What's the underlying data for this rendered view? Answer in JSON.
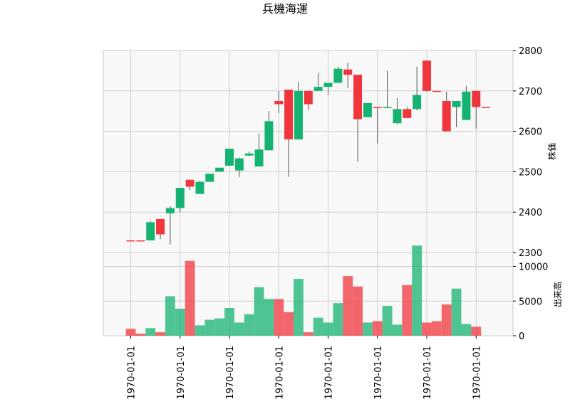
{
  "chart_data": {
    "type": "candlestick",
    "title": "兵機海運",
    "price_ylabel": "株価",
    "volume_ylabel": "出来高",
    "price_ylim": [
      2300,
      2800
    ],
    "volume_ylim": [
      0,
      12000
    ],
    "price_ticks": [
      2300,
      2400,
      2500,
      2600,
      2700,
      2800
    ],
    "volume_ticks": [
      0,
      5000,
      10000
    ],
    "x_tick_labels": [
      "1970-01-01",
      "1970-01-01",
      "1970-01-01",
      "1970-01-01",
      "1970-01-01",
      "1970-01-01",
      "1970-01-01",
      "1970-01-01"
    ],
    "grid": true,
    "up_color": "#15b371",
    "down_color": "#f0353d",
    "candles": [
      {
        "o": 2330,
        "h": 2330,
        "l": 2330,
        "c": 2330,
        "v": 1000
      },
      {
        "o": 2330,
        "h": 2330,
        "l": 2330,
        "c": 2330,
        "v": 300
      },
      {
        "o": 2330,
        "h": 2378,
        "l": 2330,
        "c": 2375,
        "v": 1100
      },
      {
        "o": 2383,
        "h": 2383,
        "l": 2333,
        "c": 2345,
        "v": 500
      },
      {
        "o": 2397,
        "h": 2415,
        "l": 2320,
        "c": 2410,
        "v": 5700
      },
      {
        "o": 2410,
        "h": 2460,
        "l": 2400,
        "c": 2460,
        "v": 3900
      },
      {
        "o": 2480,
        "h": 2480,
        "l": 2455,
        "c": 2463,
        "v": 10800
      },
      {
        "o": 2445,
        "h": 2478,
        "l": 2445,
        "c": 2475,
        "v": 1500
      },
      {
        "o": 2475,
        "h": 2495,
        "l": 2475,
        "c": 2495,
        "v": 2300
      },
      {
        "o": 2500,
        "h": 2510,
        "l": 2500,
        "c": 2510,
        "v": 2500
      },
      {
        "o": 2515,
        "h": 2557,
        "l": 2515,
        "c": 2557,
        "v": 4000
      },
      {
        "o": 2503,
        "h": 2535,
        "l": 2487,
        "c": 2533,
        "v": 1900
      },
      {
        "o": 2540,
        "h": 2550,
        "l": 2538,
        "c": 2545,
        "v": 3100
      },
      {
        "o": 2513,
        "h": 2595,
        "l": 2513,
        "c": 2555,
        "v": 7000
      },
      {
        "o": 2553,
        "h": 2650,
        "l": 2553,
        "c": 2625,
        "v": 5300
      },
      {
        "o": 2675,
        "h": 2700,
        "l": 2645,
        "c": 2667,
        "v": 5300
      },
      {
        "o": 2703,
        "h": 2703,
        "l": 2487,
        "c": 2580,
        "v": 3400
      },
      {
        "o": 2580,
        "h": 2722,
        "l": 2580,
        "c": 2700,
        "v": 8200
      },
      {
        "o": 2700,
        "h": 2700,
        "l": 2652,
        "c": 2667,
        "v": 500
      },
      {
        "o": 2700,
        "h": 2745,
        "l": 2700,
        "c": 2710,
        "v": 2600
      },
      {
        "o": 2710,
        "h": 2720,
        "l": 2690,
        "c": 2720,
        "v": 1900
      },
      {
        "o": 2720,
        "h": 2760,
        "l": 2720,
        "c": 2755,
        "v": 4700
      },
      {
        "o": 2753,
        "h": 2770,
        "l": 2707,
        "c": 2740,
        "v": 8600
      },
      {
        "o": 2740,
        "h": 2740,
        "l": 2525,
        "c": 2630,
        "v": 7100
      },
      {
        "o": 2635,
        "h": 2670,
        "l": 2635,
        "c": 2670,
        "v": 1900
      },
      {
        "o": 2660,
        "h": 2660,
        "l": 2570,
        "c": 2660,
        "v": 2100
      },
      {
        "o": 2658,
        "h": 2750,
        "l": 2658,
        "c": 2660,
        "v": 4300
      },
      {
        "o": 2620,
        "h": 2682,
        "l": 2618,
        "c": 2655,
        "v": 1600
      },
      {
        "o": 2655,
        "h": 2660,
        "l": 2632,
        "c": 2633,
        "v": 7300
      },
      {
        "o": 2655,
        "h": 2760,
        "l": 2652,
        "c": 2690,
        "v": 13000
      },
      {
        "o": 2775,
        "h": 2775,
        "l": 2698,
        "c": 2700,
        "v": 1900
      },
      {
        "o": 2700,
        "h": 2700,
        "l": 2700,
        "c": 2700,
        "v": 2100
      },
      {
        "o": 2675,
        "h": 2698,
        "l": 2600,
        "c": 2600,
        "v": 4500
      },
      {
        "o": 2660,
        "h": 2675,
        "l": 2610,
        "c": 2675,
        "v": 6800
      },
      {
        "o": 2628,
        "h": 2712,
        "l": 2628,
        "c": 2698,
        "v": 1700
      },
      {
        "o": 2700,
        "h": 2700,
        "l": 2607,
        "c": 2660,
        "v": 1300
      },
      {
        "o": 2660,
        "h": 2660,
        "l": 2660,
        "c": 2660,
        "v": 0
      }
    ]
  }
}
